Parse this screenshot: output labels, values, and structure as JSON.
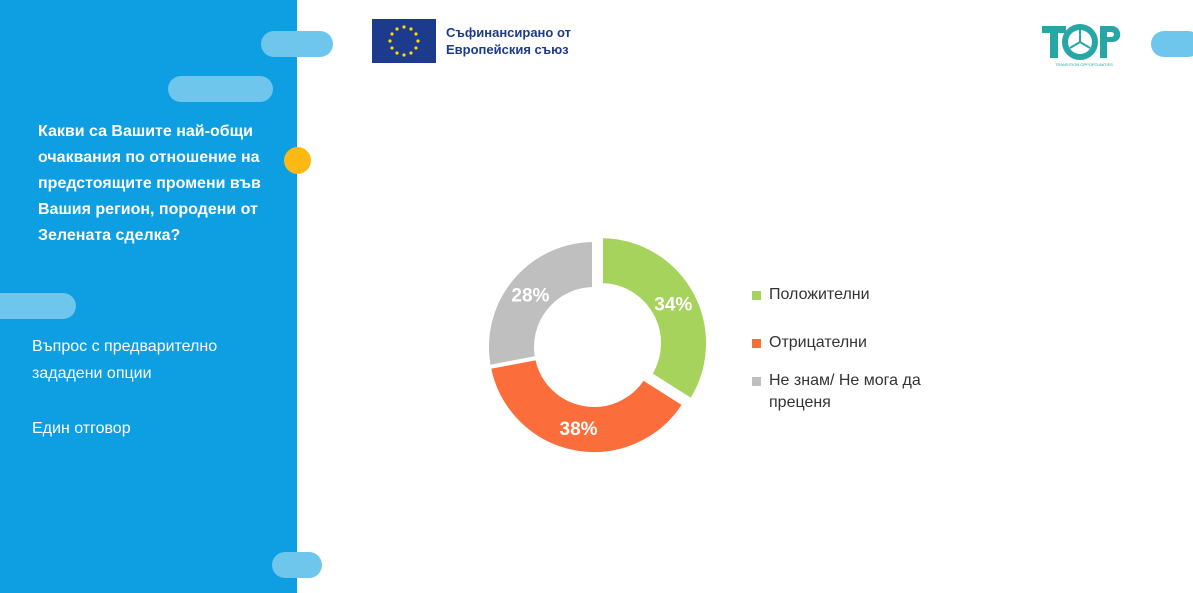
{
  "sidebar": {
    "question": "Какви са Вашите най-общи\nочаквания по отношение на\nпредстоящите промени във\nВашия регион, породени от\nЗелената сделка?",
    "question_type": "Въпрос с предварително\nзададени опции",
    "answer_mode": "Един отговор",
    "background_color": "#0e9ee2",
    "accent_color": "#fdb913"
  },
  "header": {
    "eu_logo_text": "Съфинансирано от\nЕвропейския съюз",
    "partner_logo_tagline": "TRANSITION OPPORTUNITIES"
  },
  "chart_data": {
    "type": "pie",
    "variant": "donut",
    "categories": [
      "Положителни",
      "Отрицателни",
      "Не знам/ Не мога да преценя"
    ],
    "values": [
      34,
      38,
      28
    ],
    "labels": [
      "34%",
      "38%",
      "28%"
    ],
    "colors": [
      "#a5d35c",
      "#fb6d3a",
      "#bfbfbf"
    ],
    "exploded": [
      true,
      false,
      false
    ],
    "legend_position": "right",
    "title": ""
  }
}
